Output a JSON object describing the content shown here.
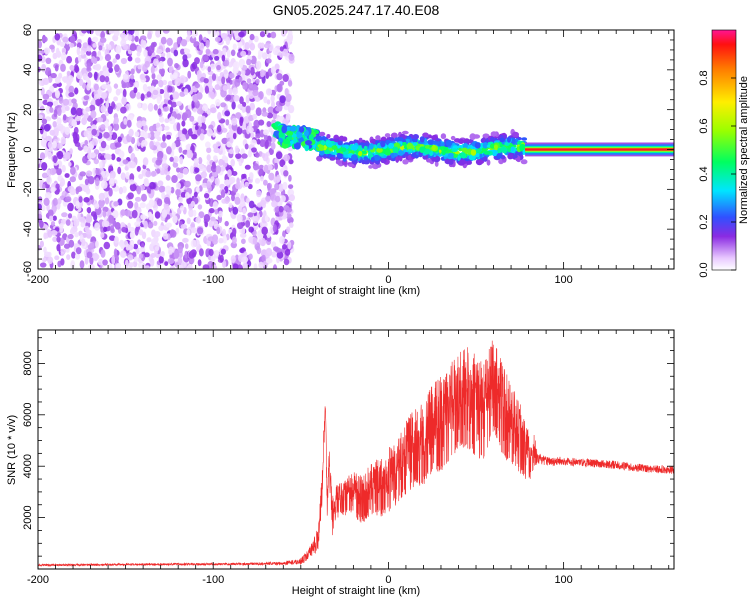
{
  "chart_data": [
    {
      "type": "heatmap",
      "title": "GN05.2025.247.17.40.E08",
      "xlabel": "Height of straight line (km)",
      "ylabel": "Frequency (Hz)",
      "xlim": [
        -200,
        163
      ],
      "ylim": [
        -60,
        60
      ],
      "xticks": [
        -200,
        -100,
        0,
        100
      ],
      "yticks": [
        -60,
        -40,
        -20,
        0,
        20,
        40,
        60
      ],
      "colorbar": {
        "label": "Normalized spectral amplitude",
        "range": [
          0,
          1
        ],
        "ticks": [
          0.0,
          0.2,
          0.4,
          0.6,
          0.8
        ],
        "tick_labels": [
          "0.0",
          "0.2",
          "0.4",
          "0.6",
          "0.8"
        ]
      },
      "regions": [
        {
          "name": "noise",
          "x": [
            -200,
            -55
          ],
          "freq": [
            -60,
            60
          ],
          "amplitude": [
            0.0,
            0.15
          ]
        },
        {
          "name": "signal-onset",
          "x": [
            -65,
            -40
          ],
          "freq_center": 8,
          "amplitude": [
            0.2,
            0.5
          ]
        },
        {
          "name": "signal-band",
          "x": [
            -40,
            78
          ],
          "freq_center": 0,
          "half_width_hz": 8,
          "amplitude": [
            0.1,
            0.6
          ]
        },
        {
          "name": "carrier-line",
          "x": [
            78,
            163
          ],
          "freq_center": 0,
          "amplitude": 0.95
        }
      ]
    },
    {
      "type": "line",
      "xlabel": "Height of straight line (km)",
      "ylabel": "SNR (10 * v/v)",
      "xlim": [
        -200,
        163
      ],
      "ylim": [
        0,
        9300
      ],
      "xticks": [
        -200,
        -100,
        0,
        100
      ],
      "yticks": [
        2000,
        4000,
        6000,
        8000
      ],
      "series": [
        {
          "name": "SNR",
          "color": "#ee2a2a",
          "x": [
            -200,
            -180,
            -160,
            -140,
            -120,
            -100,
            -80,
            -60,
            -50,
            -45,
            -40,
            -38,
            -36,
            -35,
            -34,
            -32,
            -30,
            -25,
            -20,
            -15,
            -10,
            -5,
            0,
            5,
            10,
            15,
            20,
            25,
            30,
            35,
            40,
            45,
            50,
            55,
            60,
            65,
            70,
            75,
            80,
            85,
            90,
            100,
            110,
            120,
            130,
            140,
            150,
            163
          ],
          "y": [
            150,
            160,
            170,
            180,
            185,
            190,
            200,
            220,
            300,
            600,
            1200,
            3000,
            6500,
            2500,
            4500,
            2000,
            3300,
            3500,
            3800,
            3600,
            4200,
            4300,
            4700,
            5200,
            5800,
            6300,
            6500,
            7200,
            7500,
            8000,
            8600,
            8700,
            8300,
            8100,
            9200,
            8000,
            7200,
            6500,
            5500,
            4300,
            4200,
            4200,
            4150,
            4100,
            4050,
            3950,
            3900,
            3850
          ],
          "spread": [
            50,
            50,
            50,
            50,
            50,
            50,
            60,
            80,
            150,
            300,
            600,
            800,
            600,
            800,
            900,
            900,
            1300,
            1500,
            1700,
            1900,
            2100,
            2300,
            2500,
            2700,
            2900,
            3100,
            3300,
            3500,
            3700,
            3800,
            3900,
            4000,
            4000,
            3900,
            3800,
            3600,
            3200,
            2800,
            2200,
            250,
            220,
            200,
            200,
            200,
            200,
            200,
            200,
            200
          ]
        }
      ]
    }
  ]
}
